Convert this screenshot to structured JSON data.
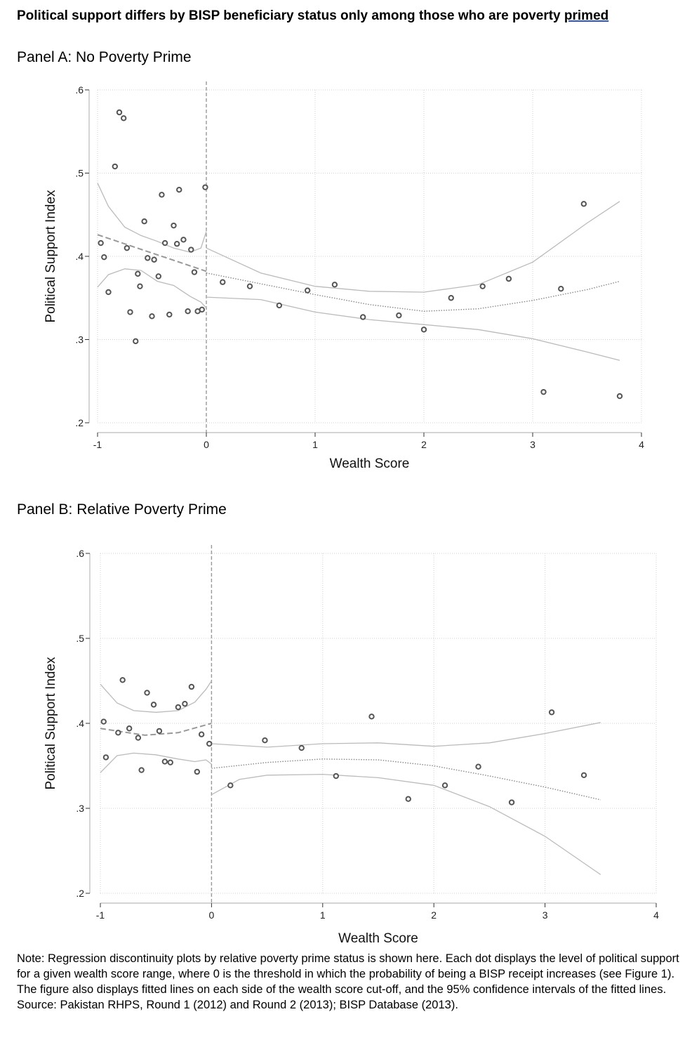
{
  "figure": {
    "title_main": "Political support differs by BISP beneficiary status only among those who are poverty ",
    "title_underlined": "primed",
    "note": "Note: Regression discontinuity plots by relative poverty prime status is shown here. Each dot displays the level of political support for a given wealth score range, where 0 is the threshold in which the probability of being a BISP receipt increases (see Figure 1). The figure also displays fitted lines on each side of the wealth score cut-off, and the 95% confidence intervals of the fitted lines. Source: Pakistan RHPS, Round 1 (2012) and Round 2 (2013); BISP Database (2013)."
  },
  "colors": {
    "point": "#555555",
    "fit": "#888888",
    "ci": "#bbbbbb",
    "grid": "#d0d0d0",
    "axis": "#333333",
    "title_underline": "#2b57c8"
  },
  "chart_data": [
    {
      "type": "scatter",
      "panel_title": "Panel A: No Poverty Prime",
      "xlabel": "Wealth Score",
      "ylabel": "Political Support Index",
      "xlim": [
        -1,
        4
      ],
      "ylim": [
        0.2,
        0.6
      ],
      "xticks": [
        -1,
        0,
        1,
        2,
        3,
        4
      ],
      "xtick_labels": [
        "-1",
        "0",
        "1",
        "2",
        "3",
        "4"
      ],
      "yticks": [
        0.2,
        0.3,
        0.4,
        0.5,
        0.6
      ],
      "ytick_labels": [
        ".2",
        ".3",
        ".4",
        ".5",
        ".6"
      ],
      "grid": true,
      "cutoff": 0,
      "points": [
        [
          -0.97,
          0.416
        ],
        [
          -0.94,
          0.399
        ],
        [
          -0.9,
          0.357
        ],
        [
          -0.84,
          0.508
        ],
        [
          -0.8,
          0.573
        ],
        [
          -0.76,
          0.566
        ],
        [
          -0.73,
          0.41
        ],
        [
          -0.7,
          0.333
        ],
        [
          -0.65,
          0.298
        ],
        [
          -0.63,
          0.379
        ],
        [
          -0.61,
          0.364
        ],
        [
          -0.57,
          0.442
        ],
        [
          -0.54,
          0.398
        ],
        [
          -0.5,
          0.328
        ],
        [
          -0.48,
          0.396
        ],
        [
          -0.44,
          0.376
        ],
        [
          -0.41,
          0.474
        ],
        [
          -0.38,
          0.416
        ],
        [
          -0.34,
          0.33
        ],
        [
          -0.3,
          0.437
        ],
        [
          -0.27,
          0.415
        ],
        [
          -0.25,
          0.48
        ],
        [
          -0.21,
          0.42
        ],
        [
          -0.17,
          0.334
        ],
        [
          -0.14,
          0.408
        ],
        [
          -0.11,
          0.381
        ],
        [
          -0.08,
          0.334
        ],
        [
          -0.04,
          0.336
        ],
        [
          -0.01,
          0.483
        ],
        [
          0.15,
          0.369
        ],
        [
          0.4,
          0.364
        ],
        [
          0.67,
          0.341
        ],
        [
          0.93,
          0.359
        ],
        [
          1.18,
          0.366
        ],
        [
          1.44,
          0.327
        ],
        [
          1.77,
          0.329
        ],
        [
          2.0,
          0.312
        ],
        [
          2.25,
          0.35
        ],
        [
          2.54,
          0.364
        ],
        [
          2.78,
          0.373
        ],
        [
          3.1,
          0.237
        ],
        [
          3.26,
          0.361
        ],
        [
          3.47,
          0.463
        ],
        [
          3.8,
          0.232
        ]
      ],
      "fit_left": [
        [
          -1,
          0.426
        ],
        [
          0,
          0.382
        ]
      ],
      "ci_left_upper": [
        [
          -1,
          0.488
        ],
        [
          -0.9,
          0.46
        ],
        [
          -0.75,
          0.435
        ],
        [
          -0.6,
          0.425
        ],
        [
          -0.45,
          0.418
        ],
        [
          -0.3,
          0.41
        ],
        [
          -0.15,
          0.405
        ],
        [
          -0.05,
          0.41
        ],
        [
          0,
          0.43
        ]
      ],
      "ci_left_lower": [
        [
          -1,
          0.363
        ],
        [
          -0.9,
          0.378
        ],
        [
          -0.75,
          0.385
        ],
        [
          -0.6,
          0.383
        ],
        [
          -0.45,
          0.37
        ],
        [
          -0.3,
          0.365
        ],
        [
          -0.15,
          0.352
        ],
        [
          -0.05,
          0.345
        ],
        [
          0,
          0.338
        ]
      ],
      "fit_right": [
        [
          0,
          0.38
        ],
        [
          0.5,
          0.367
        ],
        [
          1.0,
          0.354
        ],
        [
          1.5,
          0.342
        ],
        [
          2.0,
          0.334
        ],
        [
          2.5,
          0.337
        ],
        [
          3.0,
          0.347
        ],
        [
          3.5,
          0.36
        ],
        [
          3.8,
          0.37
        ]
      ],
      "ci_right_upper": [
        [
          0,
          0.41
        ],
        [
          0.5,
          0.38
        ],
        [
          1.0,
          0.364
        ],
        [
          1.5,
          0.358
        ],
        [
          2.0,
          0.357
        ],
        [
          2.5,
          0.366
        ],
        [
          3.0,
          0.393
        ],
        [
          3.5,
          0.44
        ],
        [
          3.8,
          0.466
        ]
      ],
      "ci_right_lower": [
        [
          0,
          0.351
        ],
        [
          0.5,
          0.348
        ],
        [
          1.0,
          0.333
        ],
        [
          1.5,
          0.324
        ],
        [
          2.0,
          0.318
        ],
        [
          2.5,
          0.312
        ],
        [
          3.0,
          0.301
        ],
        [
          3.5,
          0.285
        ],
        [
          3.8,
          0.275
        ]
      ]
    },
    {
      "type": "scatter",
      "panel_title": "Panel B: Relative Poverty Prime",
      "xlabel": "Wealth Score",
      "ylabel": "Political Support Index",
      "xlim": [
        -1,
        4
      ],
      "ylim": [
        0.2,
        0.6
      ],
      "xticks": [
        -1,
        0,
        1,
        2,
        3,
        4
      ],
      "xtick_labels": [
        "-1",
        "0",
        "1",
        "2",
        "3",
        "4"
      ],
      "yticks": [
        0.2,
        0.3,
        0.4,
        0.5,
        0.6
      ],
      "ytick_labels": [
        ".2",
        ".3",
        ".4",
        ".5",
        ".6"
      ],
      "grid": true,
      "cutoff": 0,
      "points": [
        [
          -0.97,
          0.402
        ],
        [
          -0.95,
          0.36
        ],
        [
          -0.84,
          0.389
        ],
        [
          -0.8,
          0.451
        ],
        [
          -0.74,
          0.394
        ],
        [
          -0.66,
          0.383
        ],
        [
          -0.63,
          0.345
        ],
        [
          -0.58,
          0.436
        ],
        [
          -0.52,
          0.422
        ],
        [
          -0.47,
          0.391
        ],
        [
          -0.42,
          0.355
        ],
        [
          -0.37,
          0.354
        ],
        [
          -0.3,
          0.419
        ],
        [
          -0.24,
          0.423
        ],
        [
          -0.18,
          0.443
        ],
        [
          -0.13,
          0.343
        ],
        [
          -0.09,
          0.387
        ],
        [
          -0.02,
          0.376
        ],
        [
          0.17,
          0.327
        ],
        [
          0.48,
          0.38
        ],
        [
          0.81,
          0.371
        ],
        [
          1.12,
          0.338
        ],
        [
          1.44,
          0.408
        ],
        [
          1.77,
          0.311
        ],
        [
          2.1,
          0.327
        ],
        [
          2.4,
          0.349
        ],
        [
          2.7,
          0.307
        ],
        [
          3.06,
          0.413
        ],
        [
          3.35,
          0.339
        ]
      ],
      "fit_left": [
        [
          -1,
          0.394
        ],
        [
          -0.6,
          0.386
        ],
        [
          -0.3,
          0.389
        ],
        [
          0,
          0.4
        ]
      ],
      "ci_left_upper": [
        [
          -1,
          0.446
        ],
        [
          -0.85,
          0.424
        ],
        [
          -0.7,
          0.415
        ],
        [
          -0.5,
          0.413
        ],
        [
          -0.3,
          0.415
        ],
        [
          -0.15,
          0.425
        ],
        [
          -0.05,
          0.44
        ],
        [
          0,
          0.45
        ]
      ],
      "ci_left_lower": [
        [
          -1,
          0.342
        ],
        [
          -0.85,
          0.362
        ],
        [
          -0.7,
          0.365
        ],
        [
          -0.5,
          0.363
        ],
        [
          -0.3,
          0.358
        ],
        [
          -0.15,
          0.355
        ],
        [
          -0.05,
          0.357
        ],
        [
          0,
          0.352
        ]
      ],
      "fit_right": [
        [
          0,
          0.347
        ],
        [
          0.5,
          0.354
        ],
        [
          1.0,
          0.358
        ],
        [
          1.5,
          0.357
        ],
        [
          2.0,
          0.35
        ],
        [
          2.5,
          0.338
        ],
        [
          3.0,
          0.325
        ],
        [
          3.5,
          0.31
        ]
      ],
      "ci_right_upper": [
        [
          0,
          0.376
        ],
        [
          0.5,
          0.372
        ],
        [
          1.0,
          0.376
        ],
        [
          1.5,
          0.377
        ],
        [
          2.0,
          0.373
        ],
        [
          2.5,
          0.377
        ],
        [
          3.0,
          0.388
        ],
        [
          3.5,
          0.401
        ]
      ],
      "ci_right_lower": [
        [
          0,
          0.316
        ],
        [
          0.25,
          0.334
        ],
        [
          0.5,
          0.339
        ],
        [
          1.0,
          0.34
        ],
        [
          1.5,
          0.336
        ],
        [
          2.0,
          0.327
        ],
        [
          2.5,
          0.302
        ],
        [
          3.0,
          0.267
        ],
        [
          3.5,
          0.222
        ]
      ]
    }
  ]
}
